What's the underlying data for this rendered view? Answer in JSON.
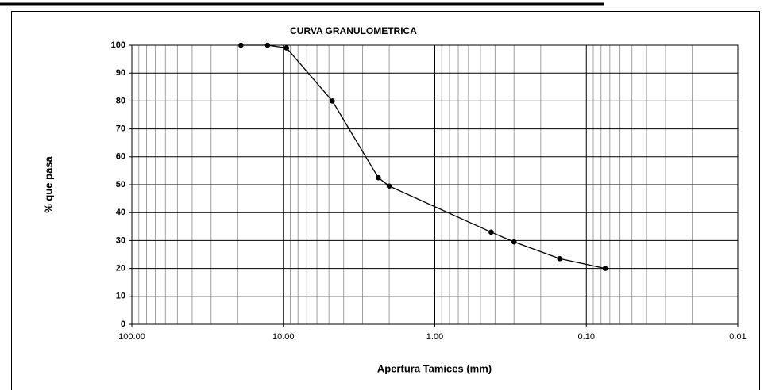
{
  "chart_data": {
    "type": "line",
    "title": "CURVA  GRANULOMETRICA",
    "x_label": "Apertura Tamices (mm)",
    "y_label": "% que pasa",
    "x": [
      19.05,
      12.7,
      9.525,
      4.75,
      2.36,
      2.0,
      0.425,
      0.3,
      0.15,
      0.075
    ],
    "series": [
      {
        "name": "% que pasa",
        "color": "#000000",
        "values": [
          100,
          100,
          99,
          80,
          52.5,
          49.5,
          33,
          29.5,
          23.5,
          20
        ]
      }
    ],
    "xlim": [
      100,
      0.01
    ],
    "xticks": [
      {
        "value": 100,
        "label": "100.00"
      },
      {
        "value": 10,
        "label": "10.00"
      },
      {
        "value": 1,
        "label": "1.00"
      },
      {
        "value": 0.1,
        "label": "0.10"
      },
      0.01
    ],
    "x_log": true,
    "minor_grid": true,
    "ylim": [
      0,
      100
    ],
    "yticks": [
      0,
      10,
      20,
      30,
      40,
      50,
      60,
      70,
      80,
      90,
      100
    ],
    "grid": true
  }
}
